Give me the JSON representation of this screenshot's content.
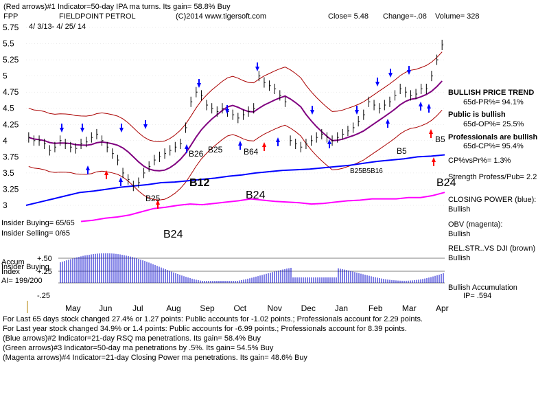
{
  "header": {
    "line1": "(Red arrows)#1 Indicator=50-day IPA ma turns. Its gain= 58.8% Buy",
    "symbol": "FPP",
    "company": "FIELDPOINT PETROL",
    "copyright": "(C)2014 www.tigersoft.com",
    "close": "Close=  5.48",
    "change": "Change=-.08",
    "volume": "Volume= 328",
    "dates": "4/ 3/13-  4/ 25/ 14"
  },
  "right_labels": [
    "BULLISH PRICE TREND",
    "65d-PR%= 94.1%",
    "Public is bullish",
    "65d-OP%= 25.5%",
    "Professionals are bullish",
    "65d-CP%= 95.4%",
    "CP%vsPr%=  1.3%",
    "Strength Profess/Pub= 2.2",
    "CLOSING POWER (blue):",
    "Bullish",
    "OBV (magenta):",
    "Bullish",
    "REL.STR..VS DJI (brown)",
    "Bullish",
    "Bullish Accumulation",
    "IP=  .594"
  ],
  "left_labels": {
    "insider_buying": "Insider Buying= 65/65",
    "insider_selling": "Insider Selling= 0/65",
    "accum1": "Accum",
    "accum2": "Insider Buying",
    "accum3": "Index",
    "ai": "AI= 199/200"
  },
  "footer": [
    "For Last 65 days stock changed  27.4% or  1.27 points:  Public accounts for -1.02 points.;  Professionals account for  2.29 points.",
    "For Last year stock changed  34.9% or  1.4 points:  Public accounts for -6.99 points.;  Professionals account for  8.39 points.",
    "(Blue arrows)#2 Indicator=21-day RSQ ma penetrations.  Its gain= 58.4% Buy",
    "(Green arrows)#3 Indicator=50-day ma penetrations by .5%. Its gain= 54.5% Buy",
    "(Magenta arrows)#4 Indicator=21-day Closing Power ma penetrations.  Its gain= 48.6% Buy"
  ],
  "signals": [
    "B12",
    "B24",
    "B24",
    "B24",
    "B25",
    "B26",
    "B25",
    "B5",
    "B5"
  ],
  "signal_labels_extra": [
    "B64",
    "B25B5B16"
  ],
  "colors": {
    "price": "#000000",
    "band": "#aa0000",
    "ma": "#800080",
    "closing_power": "#0000ff",
    "obv": "#ff00ff",
    "accum": "#0000cc",
    "red_arrow": "#ff0000",
    "blue_arrow": "#0000ff"
  },
  "chart_data": {
    "type": "line",
    "title": "FIELDPOINT PETROL",
    "x_months": [
      "May",
      "Jun",
      "Jul",
      "Aug",
      "Sep",
      "Oct",
      "Nov",
      "Dec",
      "Jan",
      "Feb",
      "Mar",
      "Apr"
    ],
    "y_ticks": [
      "5.75",
      "5.5",
      "5.25",
      "5",
      "4.75",
      "4.5",
      "4.25",
      "4",
      "3.75",
      "3.5",
      "3.25",
      "3"
    ],
    "ylim": [
      3,
      5.75
    ],
    "accum_ticks": [
      "+.50",
      "+.25",
      "-.25"
    ],
    "price_series": {
      "name": "FPP",
      "values": [
        4.05,
        4.0,
        4.0,
        3.95,
        3.85,
        3.9,
        4.0,
        3.95,
        3.9,
        3.88,
        3.95,
        3.98,
        4.05,
        4.1,
        4.0,
        3.9,
        3.8,
        3.7,
        3.5,
        3.4,
        3.3,
        3.35,
        3.5,
        3.6,
        3.7,
        3.75,
        3.8,
        3.85,
        3.9,
        3.95,
        4.2,
        4.6,
        4.75,
        4.7,
        4.55,
        4.5,
        4.45,
        4.5,
        4.45,
        4.4,
        4.35,
        4.4,
        4.45,
        4.5,
        5.0,
        4.9,
        4.85,
        4.8,
        4.7,
        4.6,
        4.0,
        3.95,
        3.9,
        3.95,
        4.0,
        4.05,
        4.1,
        4.05,
        4.0,
        4.05,
        4.1,
        4.15,
        4.2,
        4.3,
        4.4,
        4.6,
        4.55,
        4.5,
        4.55,
        4.6,
        4.7,
        4.8,
        4.75,
        4.7,
        4.72,
        4.8,
        4.8,
        5.0,
        5.25,
        5.48
      ]
    },
    "closing_power_values": [
      3.0,
      3.05,
      3.1,
      3.15,
      3.2,
      3.22,
      3.25,
      3.28,
      3.3,
      3.32,
      3.35,
      3.36,
      3.38,
      3.4,
      3.42,
      3.45,
      3.47,
      3.5,
      3.52,
      3.54,
      3.55,
      3.56,
      3.58,
      3.6,
      3.62,
      3.65,
      3.68,
      3.7,
      3.72,
      3.75,
      3.76,
      3.78
    ],
    "obv_values": [
      2.75,
      2.77,
      2.8,
      2.82,
      2.85,
      2.9,
      2.95,
      2.97,
      3.0,
      3.02,
      3.01,
      3.03,
      3.05,
      3.07,
      3.1,
      3.08,
      3.06,
      3.05,
      3.04,
      3.02,
      3.03,
      3.05,
      3.07,
      3.08,
      3.1,
      3.1,
      3.1,
      3.12,
      3.12,
      3.15,
      3.2
    ]
  }
}
